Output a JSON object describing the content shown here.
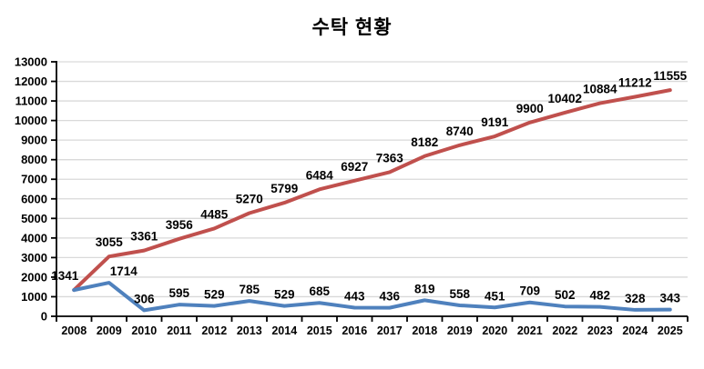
{
  "title": "수탁 현황",
  "chart_data": {
    "type": "line",
    "title": "수탁 현황",
    "categories": [
      "2008",
      "2009",
      "2010",
      "2011",
      "2012",
      "2013",
      "2014",
      "2015",
      "2016",
      "2017",
      "2018",
      "2019",
      "2020",
      "2021",
      "2022",
      "2023",
      "2024",
      "2025"
    ],
    "series": [
      {
        "name": "red",
        "color": "#C0504D",
        "values": [
          1341,
          3055,
          3361,
          3956,
          4485,
          5270,
          5799,
          6484,
          6927,
          7363,
          8182,
          8740,
          9191,
          9900,
          10402,
          10884,
          11212,
          11555
        ],
        "data_labels": true,
        "show_first_label": true
      },
      {
        "name": "blue",
        "color": "#4F81BD",
        "values": [
          1341,
          1714,
          306,
          595,
          529,
          785,
          529,
          685,
          443,
          436,
          819,
          558,
          451,
          709,
          502,
          482,
          328,
          343
        ],
        "data_labels": true,
        "show_first_label": false
      }
    ],
    "ylim": [
      0,
      13000
    ],
    "ytick_interval": 1000,
    "yticks": [
      0,
      1000,
      2000,
      3000,
      4000,
      5000,
      6000,
      7000,
      8000,
      9000,
      10000,
      11000,
      12000,
      13000
    ],
    "grid": true,
    "gridline_color": "#D9D9D9",
    "axis_color": "#000000",
    "legend": "none",
    "background": "#FFFFFF"
  }
}
